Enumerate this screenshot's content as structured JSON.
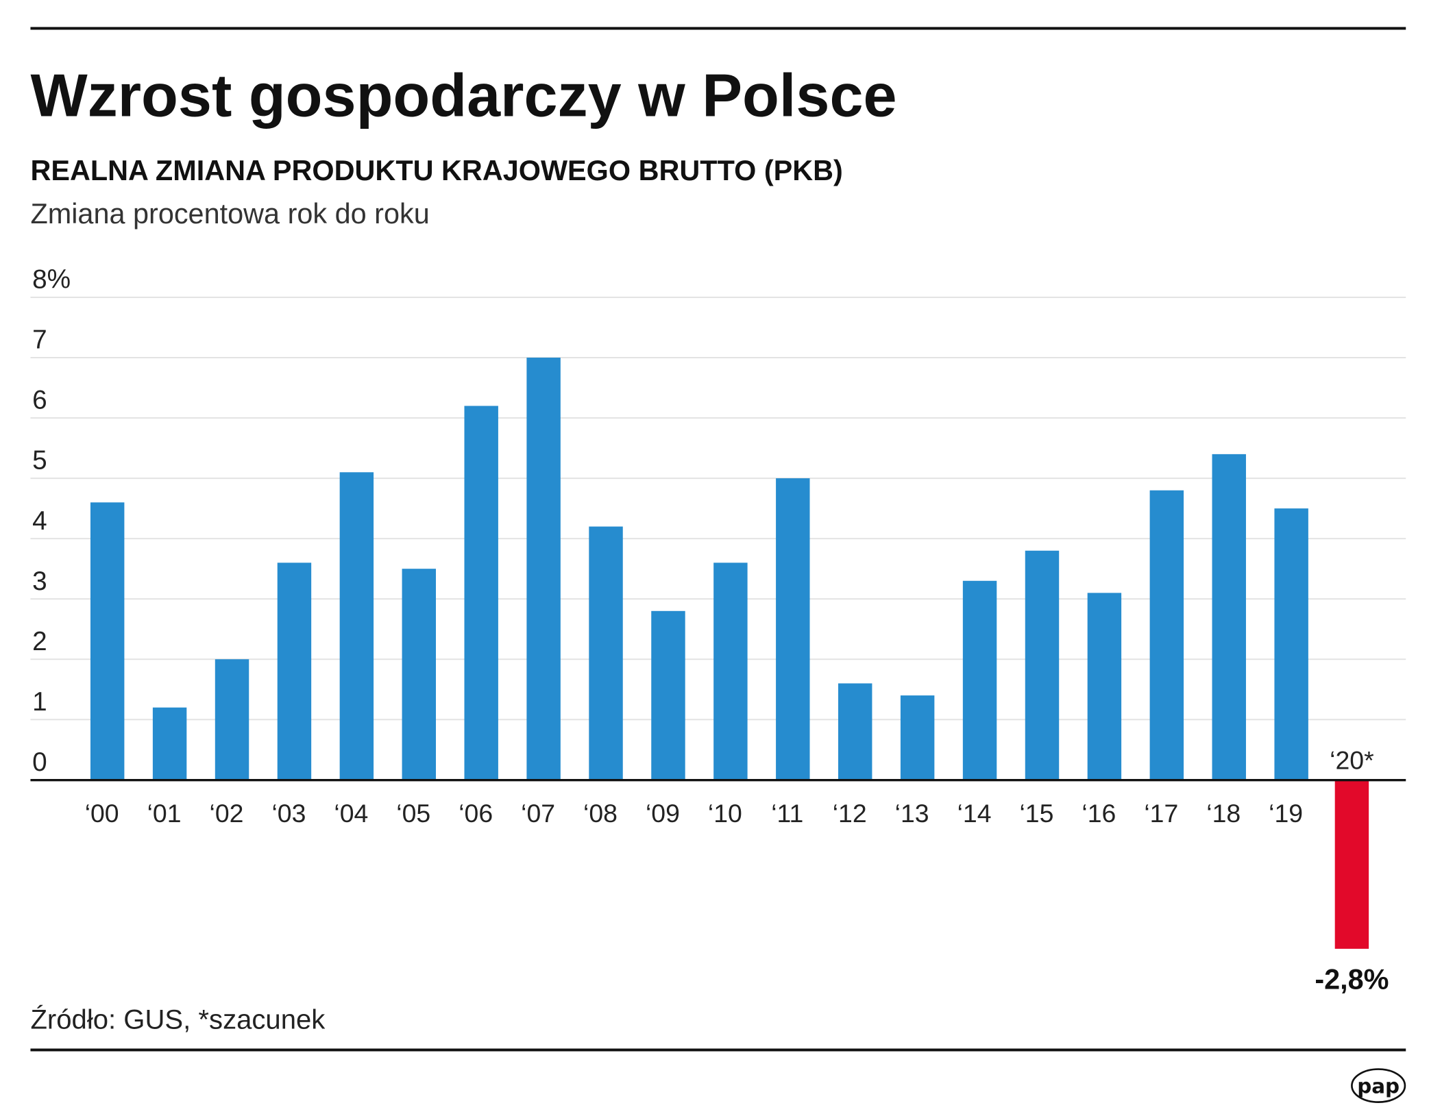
{
  "title": "Wzrost gospodarczy w Polsce",
  "subtitle": "REALNA ZMIANA PRODUKTU KRAJOWEGO BRUTTO (PKB)",
  "subtitle2": "Zmiana procentowa rok do roku",
  "source": "Źródło: GUS, *szacunek",
  "logo_text": "pap",
  "colors": {
    "positive": "#268ccf",
    "negative": "#e2092a",
    "grid": "#e3e3e3",
    "axis": "#111111"
  },
  "chart_data": {
    "type": "bar",
    "title": "Wzrost gospodarczy w Polsce",
    "ylabel": "",
    "xlabel": "",
    "ylim": [
      -2.8,
      8
    ],
    "grid": true,
    "y_ticks": [
      "0",
      "1",
      "2",
      "3",
      "4",
      "5",
      "6",
      "7",
      "8%"
    ],
    "categories": [
      "‘00",
      "‘01",
      "‘02",
      "‘03",
      "‘04",
      "‘05",
      "‘06",
      "‘07",
      "‘08",
      "‘09",
      "‘10",
      "‘11",
      "‘12",
      "‘13",
      "‘14",
      "‘15",
      "‘16",
      "‘17",
      "‘18",
      "‘19",
      "‘20*"
    ],
    "values": [
      4.6,
      1.2,
      2.0,
      3.6,
      5.1,
      3.5,
      6.2,
      7.0,
      4.2,
      2.8,
      3.6,
      5.0,
      1.6,
      1.4,
      3.3,
      3.8,
      3.1,
      4.8,
      5.4,
      4.5,
      -2.8
    ],
    "data_labels": {
      "20": "-2,8%"
    }
  }
}
